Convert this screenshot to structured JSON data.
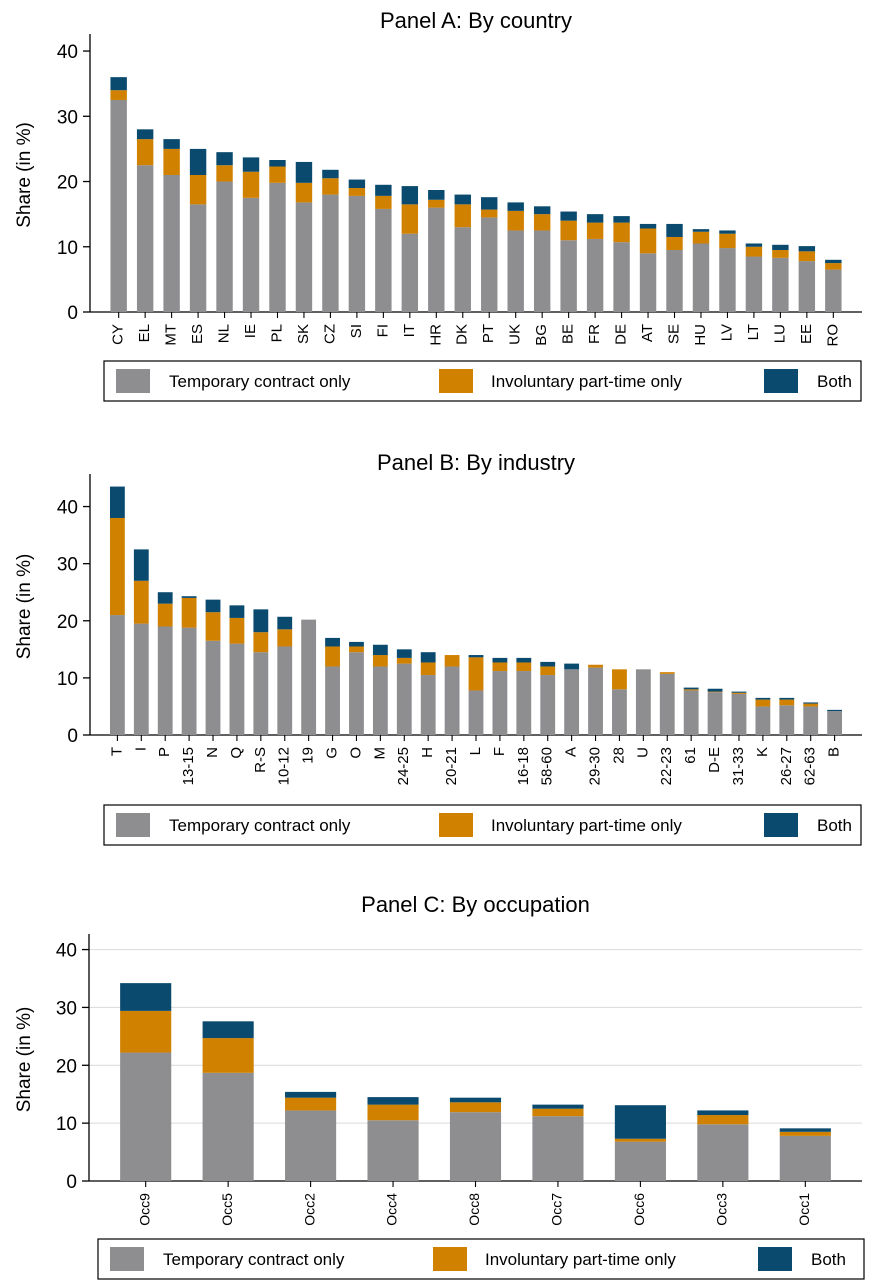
{
  "colors": {
    "temporary": "#8e8e91",
    "involuntary": "#d08100",
    "both": "#0a4a6e",
    "axis": "#000000",
    "grid": "#d9d9d9"
  },
  "chart_data": [
    {
      "type": "bar",
      "stacked": true,
      "title": "Panel A: By country",
      "ylabel": "Share (in %)",
      "xlabel": "",
      "ylim": [
        0,
        42
      ],
      "yticks": [
        "0",
        "10",
        "20",
        "30",
        "40"
      ],
      "grid": false,
      "legend_position": "bottom",
      "categories": [
        "CY",
        "EL",
        "MT",
        "ES",
        "NL",
        "IE",
        "PL",
        "SK",
        "CZ",
        "SI",
        "FI",
        "IT",
        "HR",
        "DK",
        "PT",
        "UK",
        "BG",
        "BE",
        "FR",
        "DE",
        "AT",
        "SE",
        "HU",
        "LV",
        "LT",
        "LU",
        "EE",
        "RO"
      ],
      "series": [
        {
          "name": "Temporary contract only",
          "values": [
            32.5,
            22.5,
            21,
            16.5,
            20,
            17.5,
            19.8,
            16.8,
            18,
            17.8,
            15.8,
            12,
            16,
            13,
            14.5,
            12.5,
            12.5,
            11,
            11.2,
            10.7,
            9,
            9.5,
            10.5,
            9.8,
            8.5,
            8.3,
            7.8,
            6.5
          ]
        },
        {
          "name": "Involuntary part-time only",
          "values": [
            1.5,
            4,
            4,
            4.5,
            2.5,
            4,
            2.5,
            3,
            2.5,
            1.2,
            2,
            4.5,
            1.2,
            3.5,
            1.2,
            3,
            2.5,
            3,
            2.5,
            3,
            3.8,
            2,
            1.8,
            2.2,
            1.5,
            1.2,
            1.5,
            1
          ]
        },
        {
          "name": "Both",
          "values": [
            2,
            1.5,
            1.5,
            4,
            2,
            2.2,
            1,
            3.2,
            1.3,
            1.3,
            1.7,
            2.8,
            1.5,
            1.5,
            1.9,
            1.3,
            1.2,
            1.4,
            1.3,
            1,
            0.7,
            2,
            0.4,
            0.5,
            0.5,
            0.8,
            0.8,
            0.5
          ]
        }
      ]
    },
    {
      "type": "bar",
      "stacked": true,
      "title": "Panel B: By industry",
      "ylabel": "Share (in %)",
      "xlabel": "",
      "ylim": [
        0,
        45
      ],
      "yticks": [
        "0",
        "10",
        "20",
        "30",
        "40"
      ],
      "grid": false,
      "legend_position": "bottom",
      "categories": [
        "T",
        "I",
        "P",
        "13-15",
        "N",
        "Q",
        "R-S",
        "10-12",
        "19",
        "G",
        "O",
        "M",
        "24-25",
        "H",
        "20-21",
        "L",
        "F",
        "16-18",
        "58-60",
        "A",
        "29-30",
        "28",
        "U",
        "22-23",
        "61",
        "D-E",
        "31-33",
        "K",
        "26-27",
        "62-63",
        "B"
      ],
      "series": [
        {
          "name": "Temporary contract only",
          "values": [
            21,
            19.5,
            19,
            18.8,
            16.5,
            16,
            14.5,
            15.5,
            20.2,
            12,
            14.5,
            12,
            12.5,
            10.5,
            12,
            7.8,
            11.2,
            11.2,
            10.5,
            11.5,
            11.8,
            8,
            11.5,
            10.7,
            7.8,
            7.5,
            7.2,
            5,
            5.2,
            5,
            4.2
          ]
        },
        {
          "name": "Involuntary part-time only",
          "values": [
            17,
            7.5,
            4,
            5.2,
            5,
            4.5,
            3.5,
            3,
            0,
            3.5,
            1,
            2,
            1,
            2.2,
            2,
            5.8,
            1.5,
            1.5,
            1.5,
            0,
            0.5,
            3.5,
            0,
            0.3,
            0.2,
            0.1,
            0.2,
            1.2,
            1,
            0.5,
            0
          ]
        },
        {
          "name": "Both",
          "values": [
            5.5,
            5.5,
            2,
            0.3,
            2.2,
            2.2,
            4,
            2.2,
            0,
            1.5,
            0.8,
            1.8,
            1.5,
            1.8,
            0,
            0.4,
            0.8,
            0.8,
            0.8,
            1,
            0,
            0,
            0,
            0,
            0.3,
            0.5,
            0.2,
            0.3,
            0.3,
            0.2,
            0.2
          ]
        }
      ]
    },
    {
      "type": "bar",
      "stacked": true,
      "title": "Panel C: By occupation",
      "ylabel": "Share (in %)",
      "xlabel": "",
      "ylim": [
        0,
        42
      ],
      "yticks": [
        "0",
        "10",
        "20",
        "30",
        "40"
      ],
      "grid": true,
      "legend_position": "bottom",
      "categories": [
        "Occ9",
        "Occ5",
        "Occ2",
        "Occ4",
        "Occ8",
        "Occ7",
        "Occ6",
        "Occ3",
        "Occ1"
      ],
      "series": [
        {
          "name": "Temporary contract only",
          "values": [
            22.2,
            18.7,
            12.2,
            10.5,
            11.9,
            11.2,
            6.8,
            9.8,
            7.8
          ]
        },
        {
          "name": "Involuntary part-time only",
          "values": [
            7.2,
            6,
            2.2,
            2.7,
            1.7,
            1.3,
            0.5,
            1.6,
            0.7
          ]
        },
        {
          "name": "Both",
          "values": [
            4.8,
            2.9,
            1,
            1.3,
            0.8,
            0.7,
            5.8,
            0.8,
            0.6
          ]
        }
      ]
    }
  ]
}
